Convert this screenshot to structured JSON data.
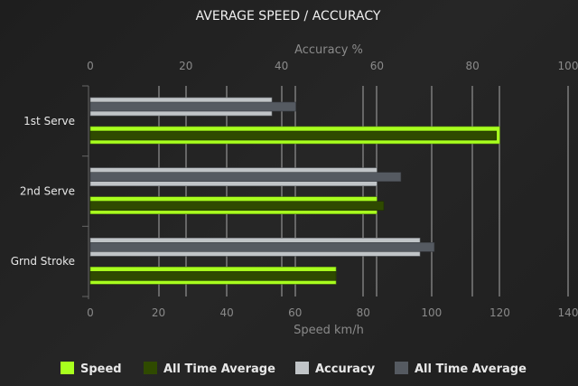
{
  "chart_data": {
    "type": "bar",
    "orientation": "horizontal",
    "title": "AVERAGE SPEED / ACCURACY",
    "categories": [
      "1st Serve",
      "2nd Serve",
      "Grnd Stroke"
    ],
    "top_axis": {
      "label": "Accuracy %",
      "range": [
        0,
        100
      ],
      "ticks": [
        0,
        20,
        40,
        60,
        80,
        100
      ]
    },
    "bottom_axis": {
      "label": "Speed km/h",
      "range": [
        0,
        140
      ],
      "ticks": [
        0,
        20,
        40,
        60,
        80,
        100,
        120,
        140
      ]
    },
    "series": [
      {
        "name": "Speed",
        "axis": "bottom",
        "color": "#a8ff1e",
        "values": [
          120,
          84,
          72
        ]
      },
      {
        "name": "All Time Average",
        "axis": "bottom",
        "color": "#2f4a00",
        "values": [
          119,
          86,
          72
        ]
      },
      {
        "name": "Accuracy",
        "axis": "top",
        "color": "#c0c4c7",
        "values": [
          38,
          60,
          69
        ]
      },
      {
        "name": "All Time Average",
        "axis": "top",
        "color": "#555a61",
        "values": [
          43,
          65,
          72
        ]
      }
    ],
    "grid": true,
    "legend": "bottom"
  }
}
